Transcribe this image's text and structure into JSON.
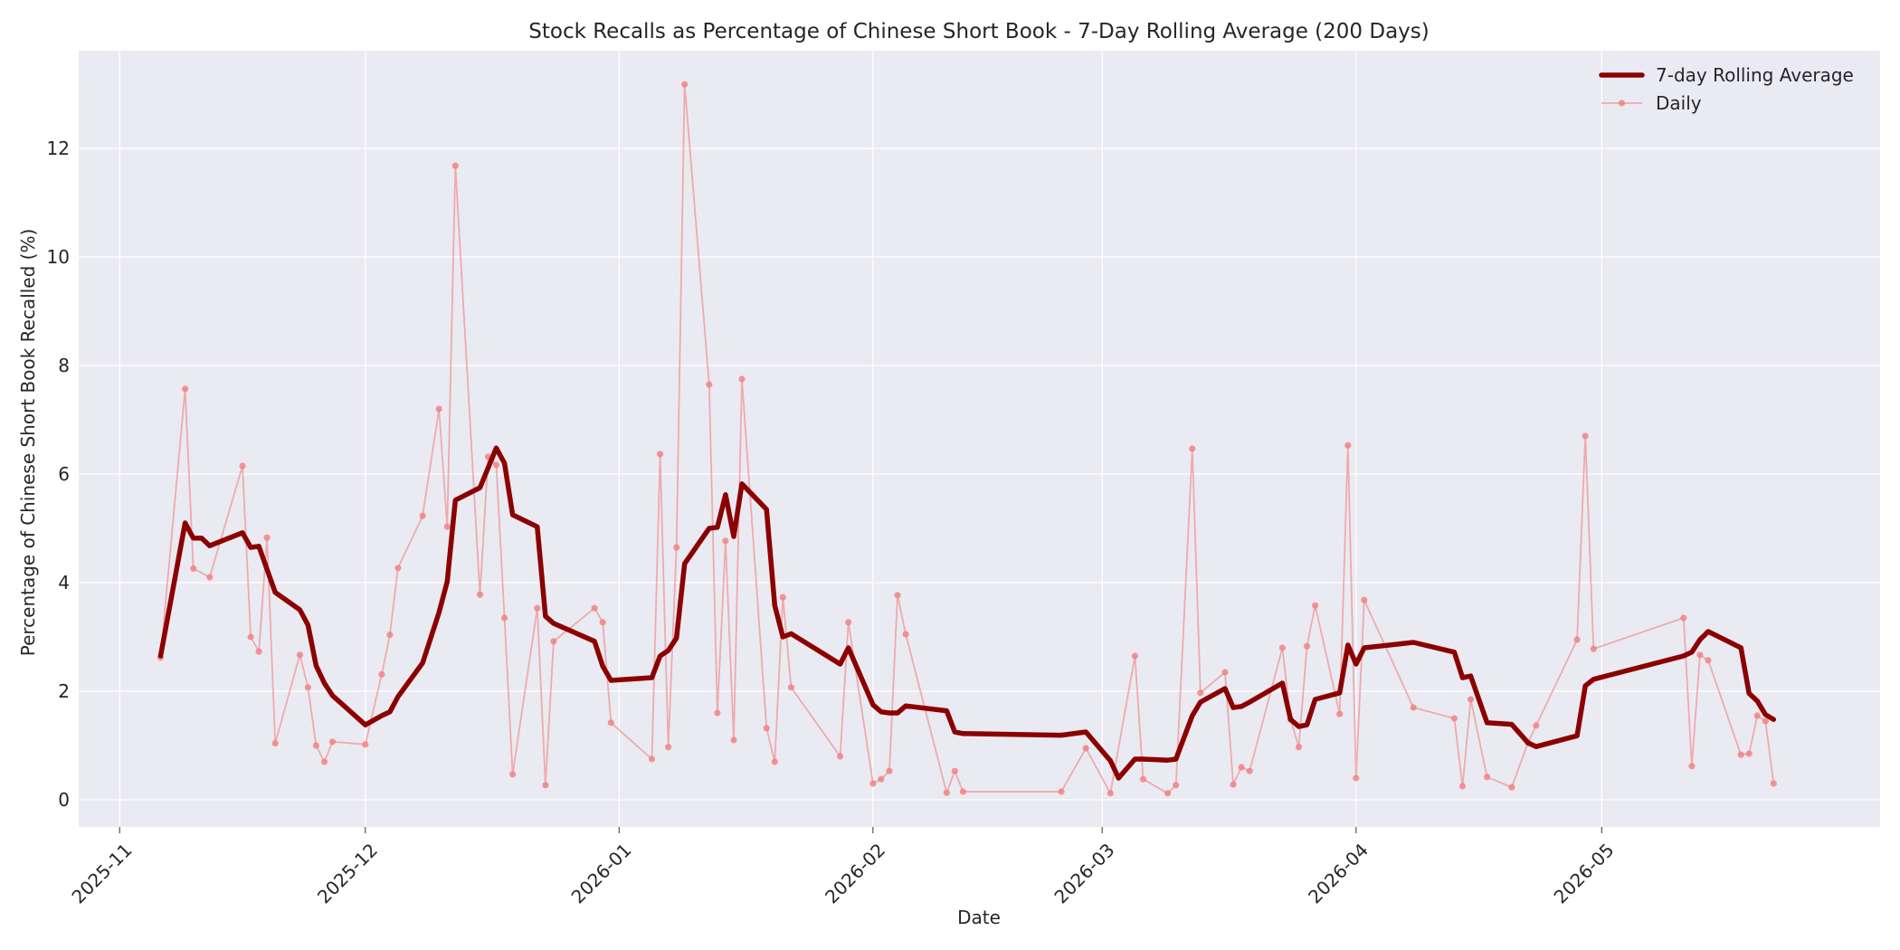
{
  "chart_data": {
    "type": "line",
    "title": "Stock Recalls as Percentage of Chinese Short Book - 7-Day Rolling Average (200 Days)",
    "xlabel": "Date",
    "ylabel": "Percentage of Chinese Short Book Recalled (%)",
    "xlim": [
      "2025-10-27",
      "2026-06-04"
    ],
    "ylim": [
      -0.5,
      13.8
    ],
    "grid": true,
    "legend_position": "top-right",
    "x_ticks": [
      "2025-11-01",
      "2025-12-01",
      "2026-01-01",
      "2026-02-01",
      "2026-03-01",
      "2026-04-01",
      "2026-05-01"
    ],
    "x_tick_labels": [
      "2025-11",
      "2025-12",
      "2026-01",
      "2026-02",
      "2026-03",
      "2026-04",
      "2026-05"
    ],
    "y_ticks": [
      0,
      2,
      4,
      6,
      8,
      10,
      12
    ],
    "y_tick_labels": [
      "0",
      "2",
      "4",
      "6",
      "8",
      "10",
      "12"
    ],
    "series": [
      {
        "name": "7-day Rolling Average",
        "color": "#8b0000",
        "style": "thick-line",
        "points": [
          [
            "2025-11-06",
            2.65
          ],
          [
            "2025-11-09",
            5.1
          ],
          [
            "2025-11-10",
            4.82
          ],
          [
            "2025-11-11",
            4.82
          ],
          [
            "2025-11-12",
            4.68
          ],
          [
            "2025-11-16",
            4.92
          ],
          [
            "2025-11-17",
            4.65
          ],
          [
            "2025-11-18",
            4.67
          ],
          [
            "2025-11-20",
            3.82
          ],
          [
            "2025-11-23",
            3.5
          ],
          [
            "2025-11-24",
            3.22
          ],
          [
            "2025-11-25",
            2.47
          ],
          [
            "2025-11-26",
            2.15
          ],
          [
            "2025-11-27",
            1.92
          ],
          [
            "2025-12-01",
            1.38
          ],
          [
            "2025-12-03",
            1.55
          ],
          [
            "2025-12-04",
            1.62
          ],
          [
            "2025-12-05",
            1.9
          ],
          [
            "2025-12-08",
            2.52
          ],
          [
            "2025-12-10",
            3.45
          ],
          [
            "2025-12-11",
            4.02
          ],
          [
            "2025-12-12",
            5.52
          ],
          [
            "2025-12-15",
            5.75
          ],
          [
            "2025-12-17",
            6.48
          ],
          [
            "2025-12-18",
            6.2
          ],
          [
            "2025-12-19",
            5.25
          ],
          [
            "2025-12-22",
            5.03
          ],
          [
            "2025-12-23",
            3.38
          ],
          [
            "2025-12-24",
            3.25
          ],
          [
            "2025-12-29",
            2.92
          ],
          [
            "2025-12-30",
            2.46
          ],
          [
            "2025-12-31",
            2.2
          ],
          [
            "2026-01-05",
            2.25
          ],
          [
            "2026-01-06",
            2.65
          ],
          [
            "2026-01-07",
            2.75
          ],
          [
            "2026-01-08",
            2.98
          ],
          [
            "2026-01-09",
            4.35
          ],
          [
            "2026-01-12",
            5.0
          ],
          [
            "2026-01-13",
            5.02
          ],
          [
            "2026-01-14",
            5.62
          ],
          [
            "2026-01-15",
            4.85
          ],
          [
            "2026-01-16",
            5.82
          ],
          [
            "2026-01-19",
            5.35
          ],
          [
            "2026-01-20",
            3.58
          ],
          [
            "2026-01-21",
            3.0
          ],
          [
            "2026-01-22",
            3.06
          ],
          [
            "2026-01-28",
            2.5
          ],
          [
            "2026-01-29",
            2.8
          ],
          [
            "2026-02-01",
            1.75
          ],
          [
            "2026-02-02",
            1.62
          ],
          [
            "2026-02-03",
            1.6
          ],
          [
            "2026-02-04",
            1.6
          ],
          [
            "2026-02-05",
            1.73
          ],
          [
            "2026-02-10",
            1.64
          ],
          [
            "2026-02-11",
            1.25
          ],
          [
            "2026-02-12",
            1.22
          ],
          [
            "2026-02-24",
            1.19
          ],
          [
            "2026-02-27",
            1.25
          ],
          [
            "2026-03-02",
            0.72
          ],
          [
            "2026-03-03",
            0.4
          ],
          [
            "2026-03-05",
            0.75
          ],
          [
            "2026-03-06",
            0.75
          ],
          [
            "2026-03-09",
            0.73
          ],
          [
            "2026-03-10",
            0.75
          ],
          [
            "2026-03-12",
            1.55
          ],
          [
            "2026-03-13",
            1.8
          ],
          [
            "2026-03-16",
            2.05
          ],
          [
            "2026-03-17",
            1.7
          ],
          [
            "2026-03-18",
            1.72
          ],
          [
            "2026-03-19",
            1.8
          ],
          [
            "2026-03-23",
            2.15
          ],
          [
            "2026-03-24",
            1.48
          ],
          [
            "2026-03-25",
            1.35
          ],
          [
            "2026-03-26",
            1.38
          ],
          [
            "2026-03-27",
            1.85
          ],
          [
            "2026-03-30",
            1.97
          ],
          [
            "2026-03-31",
            2.85
          ],
          [
            "2026-04-01",
            2.5
          ],
          [
            "2026-04-02",
            2.8
          ],
          [
            "2026-04-08",
            2.9
          ],
          [
            "2026-04-13",
            2.72
          ],
          [
            "2026-04-14",
            2.25
          ],
          [
            "2026-04-15",
            2.28
          ],
          [
            "2026-04-17",
            1.42
          ],
          [
            "2026-04-20",
            1.39
          ],
          [
            "2026-04-22",
            1.05
          ],
          [
            "2026-04-23",
            0.98
          ],
          [
            "2026-04-28",
            1.18
          ],
          [
            "2026-04-29",
            2.1
          ],
          [
            "2026-04-30",
            2.22
          ],
          [
            "2026-05-11",
            2.65
          ],
          [
            "2026-05-12",
            2.72
          ],
          [
            "2026-05-13",
            2.95
          ],
          [
            "2026-05-14",
            3.1
          ],
          [
            "2026-05-18",
            2.8
          ],
          [
            "2026-05-19",
            1.96
          ],
          [
            "2026-05-20",
            1.82
          ],
          [
            "2026-05-21",
            1.57
          ],
          [
            "2026-05-22",
            1.48
          ]
        ]
      },
      {
        "name": "Daily",
        "color": "#f08080",
        "style": "thin-line-markers",
        "points": [
          [
            "2025-11-06",
            2.62
          ],
          [
            "2025-11-09",
            7.57
          ],
          [
            "2025-11-10",
            4.26
          ],
          [
            "2025-11-12",
            4.1
          ],
          [
            "2025-11-16",
            6.15
          ],
          [
            "2025-11-17",
            3.0
          ],
          [
            "2025-11-18",
            2.73
          ],
          [
            "2025-11-19",
            4.83
          ],
          [
            "2025-11-20",
            1.04
          ],
          [
            "2025-11-23",
            2.67
          ],
          [
            "2025-11-24",
            2.07
          ],
          [
            "2025-11-25",
            1.0
          ],
          [
            "2025-11-26",
            0.7
          ],
          [
            "2025-11-27",
            1.07
          ],
          [
            "2025-12-01",
            1.02
          ],
          [
            "2025-12-03",
            2.31
          ],
          [
            "2025-12-04",
            3.04
          ],
          [
            "2025-12-05",
            4.27
          ],
          [
            "2025-12-08",
            5.23
          ],
          [
            "2025-12-10",
            7.2
          ],
          [
            "2025-12-11",
            5.03
          ],
          [
            "2025-12-12",
            11.68
          ],
          [
            "2025-12-15",
            3.78
          ],
          [
            "2025-12-16",
            6.32
          ],
          [
            "2025-12-17",
            6.17
          ],
          [
            "2025-12-18",
            3.35
          ],
          [
            "2025-12-19",
            0.47
          ],
          [
            "2025-12-22",
            3.53
          ],
          [
            "2025-12-23",
            0.27
          ],
          [
            "2025-12-24",
            2.92
          ],
          [
            "2025-12-29",
            3.53
          ],
          [
            "2025-12-30",
            3.27
          ],
          [
            "2025-12-31",
            1.42
          ],
          [
            "2026-01-05",
            0.75
          ],
          [
            "2026-01-06",
            6.37
          ],
          [
            "2026-01-07",
            0.97
          ],
          [
            "2026-01-08",
            4.65
          ],
          [
            "2026-01-09",
            13.18
          ],
          [
            "2026-01-12",
            7.65
          ],
          [
            "2026-01-13",
            1.6
          ],
          [
            "2026-01-14",
            4.77
          ],
          [
            "2026-01-15",
            1.1
          ],
          [
            "2026-01-16",
            7.75
          ],
          [
            "2026-01-19",
            1.32
          ],
          [
            "2026-01-20",
            0.7
          ],
          [
            "2026-01-21",
            3.73
          ],
          [
            "2026-01-22",
            2.07
          ],
          [
            "2026-01-28",
            0.8
          ],
          [
            "2026-01-29",
            3.27
          ],
          [
            "2026-02-01",
            0.3
          ],
          [
            "2026-02-02",
            0.38
          ],
          [
            "2026-02-03",
            0.53
          ],
          [
            "2026-02-04",
            3.77
          ],
          [
            "2026-02-05",
            3.05
          ],
          [
            "2026-02-10",
            0.13
          ],
          [
            "2026-02-11",
            0.53
          ],
          [
            "2026-02-12",
            0.15
          ],
          [
            "2026-02-24",
            0.15
          ],
          [
            "2026-02-27",
            0.95
          ],
          [
            "2026-03-02",
            0.12
          ],
          [
            "2026-03-05",
            2.65
          ],
          [
            "2026-03-06",
            0.38
          ],
          [
            "2026-03-09",
            0.12
          ],
          [
            "2026-03-10",
            0.27
          ],
          [
            "2026-03-12",
            6.47
          ],
          [
            "2026-03-13",
            1.97
          ],
          [
            "2026-03-16",
            2.35
          ],
          [
            "2026-03-17",
            0.28
          ],
          [
            "2026-03-18",
            0.6
          ],
          [
            "2026-03-19",
            0.53
          ],
          [
            "2026-03-23",
            2.8
          ],
          [
            "2026-03-24",
            1.48
          ],
          [
            "2026-03-25",
            0.97
          ],
          [
            "2026-03-26",
            2.83
          ],
          [
            "2026-03-27",
            3.58
          ],
          [
            "2026-03-30",
            1.58
          ],
          [
            "2026-03-31",
            6.53
          ],
          [
            "2026-04-01",
            0.4
          ],
          [
            "2026-04-02",
            3.68
          ],
          [
            "2026-04-08",
            1.7
          ],
          [
            "2026-04-13",
            1.5
          ],
          [
            "2026-04-14",
            0.25
          ],
          [
            "2026-04-15",
            1.85
          ],
          [
            "2026-04-17",
            0.42
          ],
          [
            "2026-04-20",
            0.23
          ],
          [
            "2026-04-22",
            1.05
          ],
          [
            "2026-04-23",
            1.37
          ],
          [
            "2026-04-28",
            2.95
          ],
          [
            "2026-04-29",
            6.7
          ],
          [
            "2026-04-30",
            2.78
          ],
          [
            "2026-05-11",
            3.35
          ],
          [
            "2026-05-12",
            0.62
          ],
          [
            "2026-05-13",
            2.67
          ],
          [
            "2026-05-14",
            2.57
          ],
          [
            "2026-05-18",
            0.83
          ],
          [
            "2026-05-19",
            0.85
          ],
          [
            "2026-05-20",
            1.55
          ],
          [
            "2026-05-21",
            1.45
          ],
          [
            "2026-05-22",
            0.3
          ]
        ]
      }
    ]
  }
}
